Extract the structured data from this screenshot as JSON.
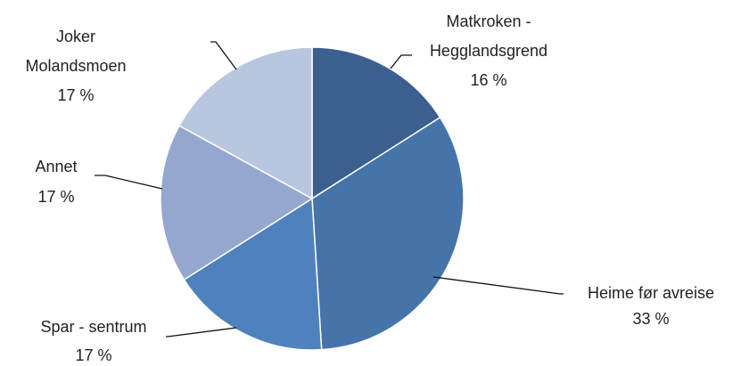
{
  "chart_data": {
    "type": "pie",
    "categories": [
      [
        "Matkroken -",
        "Hegglandsgrend"
      ],
      [
        "Heime før avreise"
      ],
      [
        "Spar - sentrum"
      ],
      [
        "Annet"
      ],
      [
        "Joker",
        "Molandsmoen"
      ]
    ],
    "values": [
      16,
      33,
      17,
      17,
      17
    ],
    "value_labels": [
      "16 %",
      "33 %",
      "17 %",
      "17 %",
      "17 %"
    ],
    "colors": [
      "#3b5f8e",
      "#4574aa",
      "#4f81bd",
      "#94a8cf",
      "#b9c6e0"
    ]
  }
}
